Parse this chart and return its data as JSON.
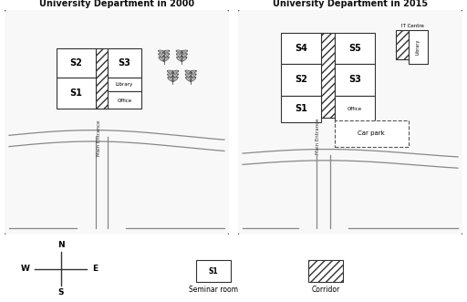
{
  "title_2000": "University Department in 2000",
  "title_2015": "University Department in 2015",
  "bg_color": "#ffffff",
  "ec": "#333333",
  "legend_seminar_label": "Seminar room",
  "legend_corridor_label": "Corridor"
}
